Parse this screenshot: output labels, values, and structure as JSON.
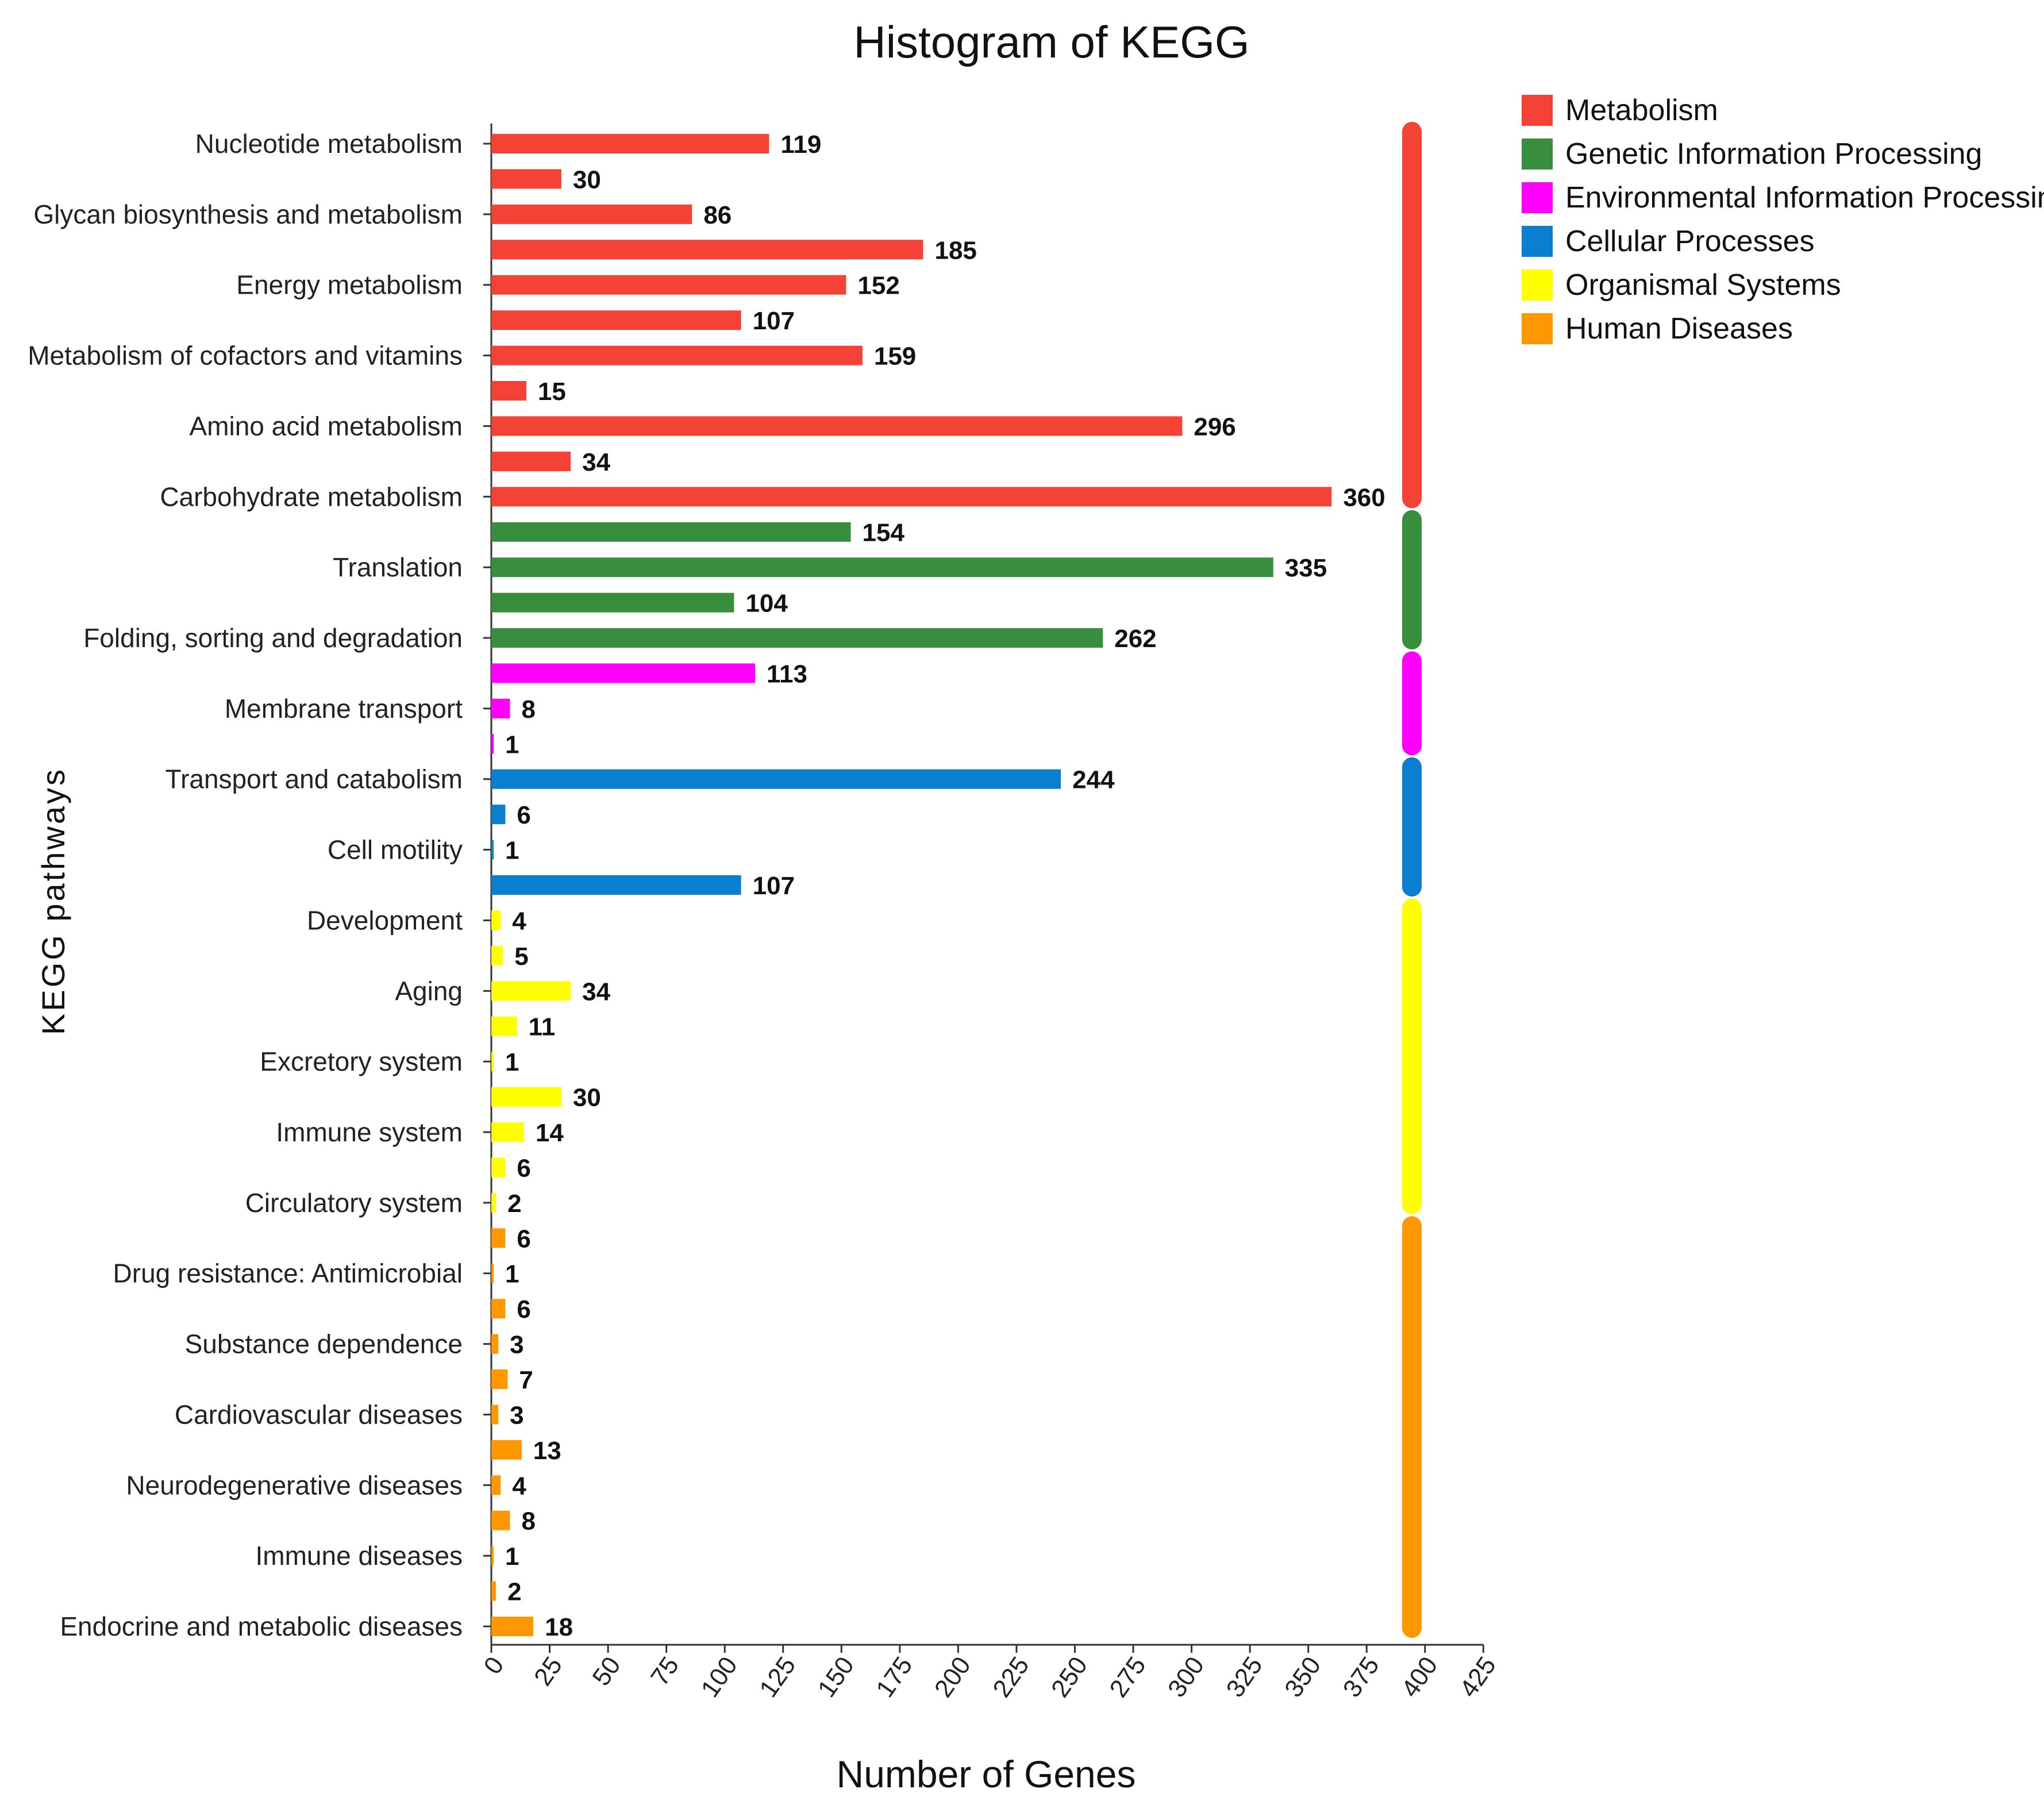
{
  "chart_data": {
    "type": "bar",
    "orientation": "horizontal",
    "title": "Histogram of KEGG",
    "xlabel": "Number of Genes",
    "ylabel": "KEGG pathways",
    "xlim": [
      0,
      425
    ],
    "xticks": [
      "0",
      "25",
      "50",
      "75",
      "100",
      "125",
      "150",
      "175",
      "200",
      "225",
      "250",
      "275",
      "300",
      "325",
      "350",
      "375",
      "400",
      "425"
    ],
    "grid": false,
    "legend_position": "top-right",
    "groups": [
      {
        "name": "Metabolism",
        "color": "#f44336"
      },
      {
        "name": "Genetic Information Processing",
        "color": "#388e3c"
      },
      {
        "name": "Environmental Information Processing",
        "color": "#ff00ff"
      },
      {
        "name": "Cellular Processes",
        "color": "#0a7fd0"
      },
      {
        "name": "Organismal Systems",
        "color": "#ffff00"
      },
      {
        "name": "Human Diseases",
        "color": "#ff9800"
      }
    ],
    "bars": [
      {
        "label": "Nucleotide metabolism",
        "value": 119,
        "group": 0
      },
      {
        "label": "",
        "value": 30,
        "group": 0
      },
      {
        "label": "Glycan biosynthesis and metabolism",
        "value": 86,
        "group": 0
      },
      {
        "label": "",
        "value": 185,
        "group": 0
      },
      {
        "label": "Energy metabolism",
        "value": 152,
        "group": 0
      },
      {
        "label": "",
        "value": 107,
        "group": 0
      },
      {
        "label": "Metabolism of cofactors and vitamins",
        "value": 159,
        "group": 0
      },
      {
        "label": "",
        "value": 15,
        "group": 0
      },
      {
        "label": "Amino acid metabolism",
        "value": 296,
        "group": 0
      },
      {
        "label": "",
        "value": 34,
        "group": 0
      },
      {
        "label": "Carbohydrate metabolism",
        "value": 360,
        "group": 0
      },
      {
        "label": "",
        "value": 154,
        "group": 1
      },
      {
        "label": "Translation",
        "value": 335,
        "group": 1
      },
      {
        "label": "",
        "value": 104,
        "group": 1
      },
      {
        "label": "Folding, sorting and degradation",
        "value": 262,
        "group": 1
      },
      {
        "label": "",
        "value": 113,
        "group": 2
      },
      {
        "label": "Membrane transport",
        "value": 8,
        "group": 2
      },
      {
        "label": "",
        "value": 1,
        "group": 2
      },
      {
        "label": "Transport and catabolism",
        "value": 244,
        "group": 3
      },
      {
        "label": "",
        "value": 6,
        "group": 3
      },
      {
        "label": "Cell motility",
        "value": 1,
        "group": 3
      },
      {
        "label": "",
        "value": 107,
        "group": 3
      },
      {
        "label": "Development",
        "value": 4,
        "group": 4
      },
      {
        "label": "",
        "value": 5,
        "group": 4
      },
      {
        "label": "Aging",
        "value": 34,
        "group": 4
      },
      {
        "label": "",
        "value": 11,
        "group": 4
      },
      {
        "label": "Excretory system",
        "value": 1,
        "group": 4
      },
      {
        "label": "",
        "value": 30,
        "group": 4
      },
      {
        "label": "Immune system",
        "value": 14,
        "group": 4
      },
      {
        "label": "",
        "value": 6,
        "group": 4
      },
      {
        "label": "Circulatory system",
        "value": 2,
        "group": 4
      },
      {
        "label": "",
        "value": 6,
        "group": 5
      },
      {
        "label": "Drug resistance: Antimicrobial",
        "value": 1,
        "group": 5
      },
      {
        "label": "",
        "value": 6,
        "group": 5
      },
      {
        "label": "Substance dependence",
        "value": 3,
        "group": 5
      },
      {
        "label": "",
        "value": 7,
        "group": 5
      },
      {
        "label": "Cardiovascular diseases",
        "value": 3,
        "group": 5
      },
      {
        "label": "",
        "value": 13,
        "group": 5
      },
      {
        "label": "Neurodegenerative diseases",
        "value": 4,
        "group": 5
      },
      {
        "label": "",
        "value": 8,
        "group": 5
      },
      {
        "label": "Immune diseases",
        "value": 1,
        "group": 5
      },
      {
        "label": "",
        "value": 2,
        "group": 5
      },
      {
        "label": "Endocrine and metabolic diseases",
        "value": 18,
        "group": 5
      }
    ]
  }
}
